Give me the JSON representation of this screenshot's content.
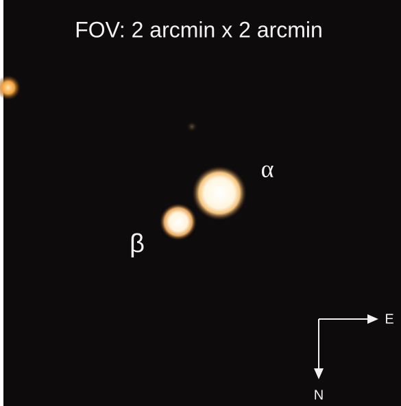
{
  "image": {
    "caption": "FOV: 2 arcmin x 2 arcmin",
    "labels": {
      "alpha": "α",
      "beta": "β"
    },
    "compass": {
      "east": "E",
      "north": "N"
    }
  }
}
